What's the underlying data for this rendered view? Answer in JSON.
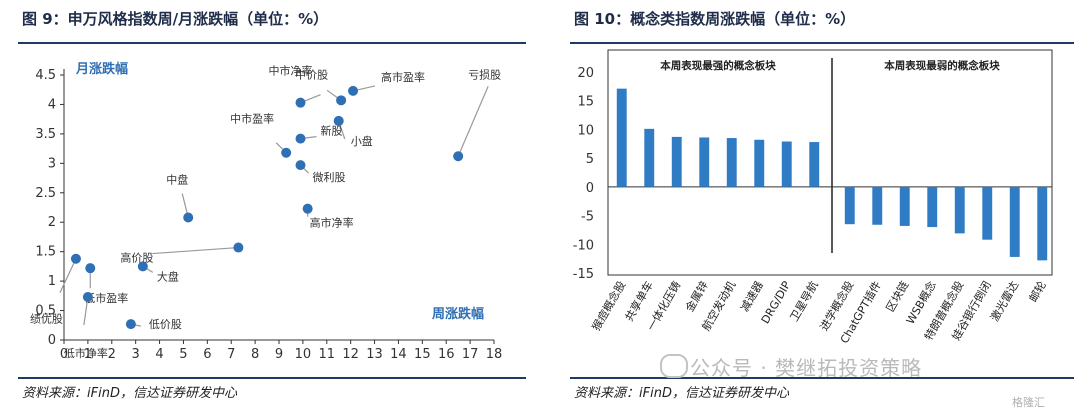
{
  "left": {
    "title": "图 9：申万风格指数周/月涨跌幅（单位：%）",
    "source": "资料来源：iFinD，信达证券研发中心",
    "chart_data": {
      "type": "scatter",
      "xlabel": "周涨跌幅",
      "ylabel": "月涨跌幅",
      "xlim": [
        0,
        18
      ],
      "ylim": [
        0,
        4.5
      ],
      "x_ticks": [
        "0",
        "1",
        "2",
        "3",
        "4",
        "5",
        "6",
        "7",
        "8",
        "9",
        "10",
        "11",
        "12",
        "13",
        "14",
        "15",
        "16",
        "17",
        "18"
      ],
      "y_ticks": [
        "0",
        "0.5",
        "1",
        "1.5",
        "2",
        "2.5",
        "3",
        "3.5",
        "4",
        "4.5"
      ],
      "points": [
        {
          "label": "中市净率",
          "x": 9.9,
          "y": 4.03
        },
        {
          "label": "中价股",
          "x": 11.6,
          "y": 4.07
        },
        {
          "label": "高市盈率",
          "x": 12.1,
          "y": 4.23
        },
        {
          "label": "小盘",
          "x": 11.5,
          "y": 3.72
        },
        {
          "label": "新股",
          "x": 9.9,
          "y": 3.42
        },
        {
          "label": "中市盈率",
          "x": 9.3,
          "y": 3.18
        },
        {
          "label": "微利股",
          "x": 9.9,
          "y": 2.97
        },
        {
          "label": "高市净率",
          "x": 10.2,
          "y": 2.23
        },
        {
          "label": "亏损股",
          "x": 16.5,
          "y": 3.12
        },
        {
          "label": "中盘",
          "x": 5.2,
          "y": 2.08
        },
        {
          "label": "高价股",
          "x": 7.3,
          "y": 1.57
        },
        {
          "label": "大盘",
          "x": 3.3,
          "y": 1.25
        },
        {
          "label": "绩优股",
          "x": 0.5,
          "y": 1.38
        },
        {
          "label": "低市盈率",
          "x": 1.1,
          "y": 1.22
        },
        {
          "label": "低市净率",
          "x": 1.0,
          "y": 0.73
        },
        {
          "label": "低价股",
          "x": 2.8,
          "y": 0.27
        }
      ]
    }
  },
  "right": {
    "title": "图 10：概念类指数周涨跌幅（单位：%）",
    "source": "资料来源：iFinD，信达证券研发中心",
    "chart_data": {
      "type": "bar",
      "ylim": [
        -15,
        20
      ],
      "y_ticks": [
        "20",
        "15",
        "10",
        "5",
        "0",
        "-5",
        "-10",
        "-15"
      ],
      "group_labels": [
        "本周表现最强的概念板块",
        "本周表现最弱的概念板块"
      ],
      "categories": [
        "猴痘概念股",
        "共享单车",
        "一体化压铸",
        "金属锌",
        "航空发动机",
        "减速器",
        "DRG/DIP",
        "卫星导航",
        "进学概念股",
        "ChatGPT插件",
        "区块链",
        "WSB概念",
        "特朗普概念股",
        "娃谷银行倒闭",
        "激光雷达",
        "邮轮"
      ],
      "values": [
        17.1,
        10.1,
        8.7,
        8.6,
        8.5,
        8.2,
        7.9,
        7.8,
        -6.5,
        -6.6,
        -6.8,
        -7.0,
        -8.1,
        -9.2,
        -12.2,
        -12.8
      ],
      "color": "#2f7cc4"
    },
    "watermark": "公众号 · 樊继拓投资策略",
    "logo": "格隆汇"
  }
}
